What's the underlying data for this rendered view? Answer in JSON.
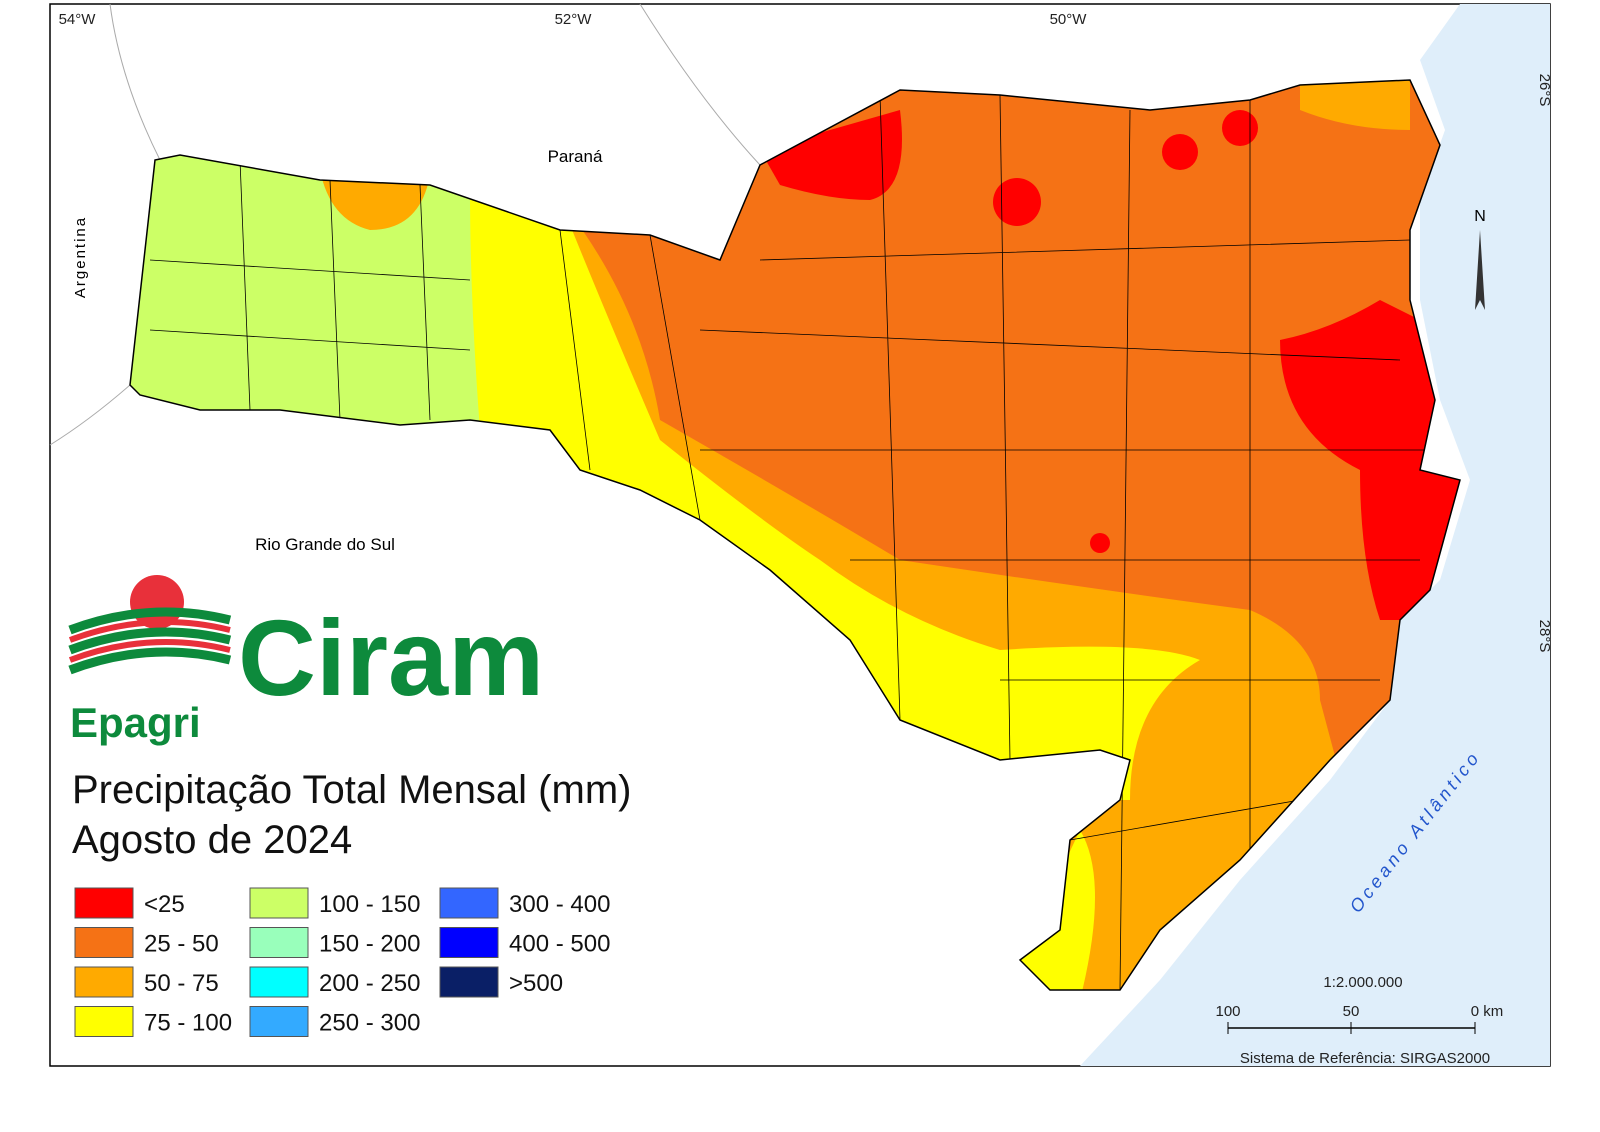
{
  "graticule": {
    "longitudes": [
      "54°W",
      "52°W",
      "50°W"
    ],
    "latitudes": [
      "26°S",
      "28°S"
    ]
  },
  "labels": {
    "parana": "Paraná",
    "argentina": "Argentina",
    "rio_grande_do_sul": "Rio Grande do Sul",
    "ocean": "Oceano Atlântico"
  },
  "north_arrow": "N",
  "logo": {
    "name": "Ciram",
    "org": "Epagri"
  },
  "title": [
    "Precipitação Total Mensal (mm)",
    "Agosto de 2024"
  ],
  "legend": [
    {
      "label": "<25",
      "color": "#ff0000"
    },
    {
      "label": "25 - 50",
      "color": "#f57215"
    },
    {
      "label": "50 - 75",
      "color": "#ffaa00"
    },
    {
      "label": "75 - 100",
      "color": "#ffff00"
    },
    {
      "label": "100 - 150",
      "color": "#ccff66"
    },
    {
      "label": "150 - 200",
      "color": "#99ffbb"
    },
    {
      "label": "200 - 250",
      "color": "#00ffff"
    },
    {
      "label": "250 - 300",
      "color": "#33aaff"
    },
    {
      "label": "300 - 400",
      "color": "#3366ff"
    },
    {
      "label": "400 - 500",
      "color": "#0000ff"
    },
    {
      "label": ">500",
      "color": "#0a1f66"
    }
  ],
  "scale": {
    "ratio": "1:2.000.000",
    "ticks": [
      "100",
      "50",
      "0 km"
    ]
  },
  "reference": "Sistema de Referência: SIRGAS2000"
}
